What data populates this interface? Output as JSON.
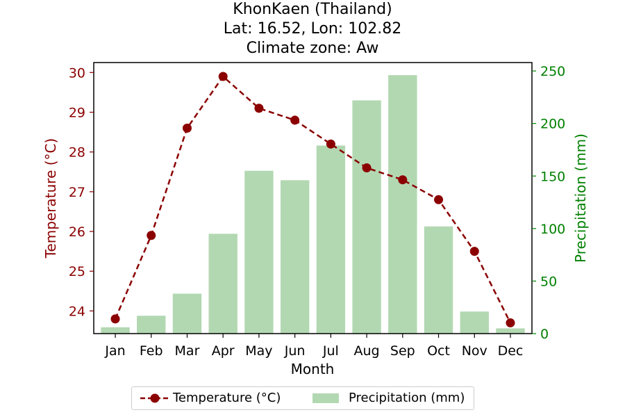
{
  "title": {
    "line1": "KhonKaen (Thailand)",
    "line2": "Lat: 16.52, Lon: 102.82",
    "line3": "Climate zone: Aw"
  },
  "colors": {
    "temperature": "#8b0000",
    "precipitation": "#b2d8b2",
    "precipitation_axis": "#008000"
  },
  "chart_data": {
    "type": "bar+line",
    "categories": [
      "Jan",
      "Feb",
      "Mar",
      "Apr",
      "May",
      "Jun",
      "Jul",
      "Aug",
      "Sep",
      "Oct",
      "Nov",
      "Dec"
    ],
    "xlabel": "Month",
    "series": [
      {
        "name": "Temperature (°C)",
        "type": "line",
        "axis": "left",
        "values": [
          23.8,
          25.9,
          28.6,
          29.9,
          29.1,
          28.8,
          28.2,
          27.6,
          27.3,
          26.8,
          25.5,
          23.7
        ]
      },
      {
        "name": "Precipitation (mm)",
        "type": "bar",
        "axis": "right",
        "values": [
          6,
          17,
          38,
          95,
          155,
          146,
          179,
          222,
          246,
          102,
          21,
          5
        ]
      }
    ],
    "y_left": {
      "label": "Temperature (°C)",
      "ylim": [
        23.43,
        30.25
      ],
      "ticks": [
        24,
        25,
        26,
        27,
        28,
        29,
        30
      ]
    },
    "y_right": {
      "label": "Precipitation (mm)",
      "ylim": [
        0,
        258
      ],
      "ticks": [
        0,
        50,
        100,
        150,
        200,
        250
      ]
    },
    "grid": false,
    "legend_position": "bottom-center"
  }
}
